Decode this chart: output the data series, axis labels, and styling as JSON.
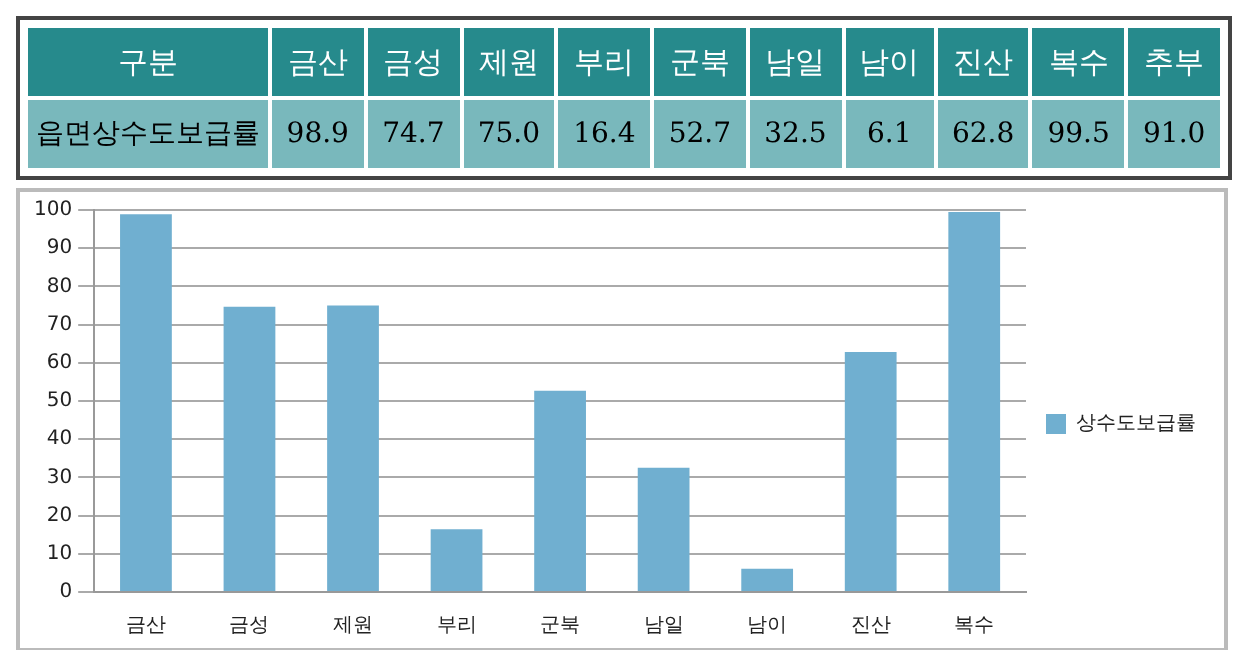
{
  "chart_data": [
    {
      "type": "other",
      "xlabel": "구분",
      "categories": [
        "금산",
        "금성",
        "제원",
        "부리",
        "군북",
        "남일",
        "남이",
        "진산",
        "복수",
        "추부"
      ],
      "series": [
        {
          "name": "읍면상수도보급률",
          "values": [
            98.9,
            74.7,
            75.0,
            16.4,
            52.7,
            32.5,
            6.1,
            62.8,
            99.5,
            91.0
          ],
          "value_labels": [
            "98.9",
            "74.7",
            "75.0",
            "16.4",
            "52.7",
            "32.5",
            "6.1",
            "62.8",
            "99.5",
            "91.0"
          ]
        }
      ]
    },
    {
      "type": "bar",
      "categories": [
        "금산",
        "금성",
        "제원",
        "부리",
        "군북",
        "남일",
        "남이",
        "진산",
        "복수"
      ],
      "series": [
        {
          "name": "상수도보급률",
          "color": "#70afd0",
          "values": [
            98.9,
            74.7,
            75.0,
            16.4,
            52.7,
            32.5,
            6.1,
            62.8,
            99.5
          ]
        }
      ],
      "ylim": [
        0,
        100
      ],
      "yticks": [
        0,
        10,
        20,
        30,
        40,
        50,
        60,
        70,
        80,
        90,
        100
      ],
      "grid": "y",
      "legend": "right"
    }
  ]
}
